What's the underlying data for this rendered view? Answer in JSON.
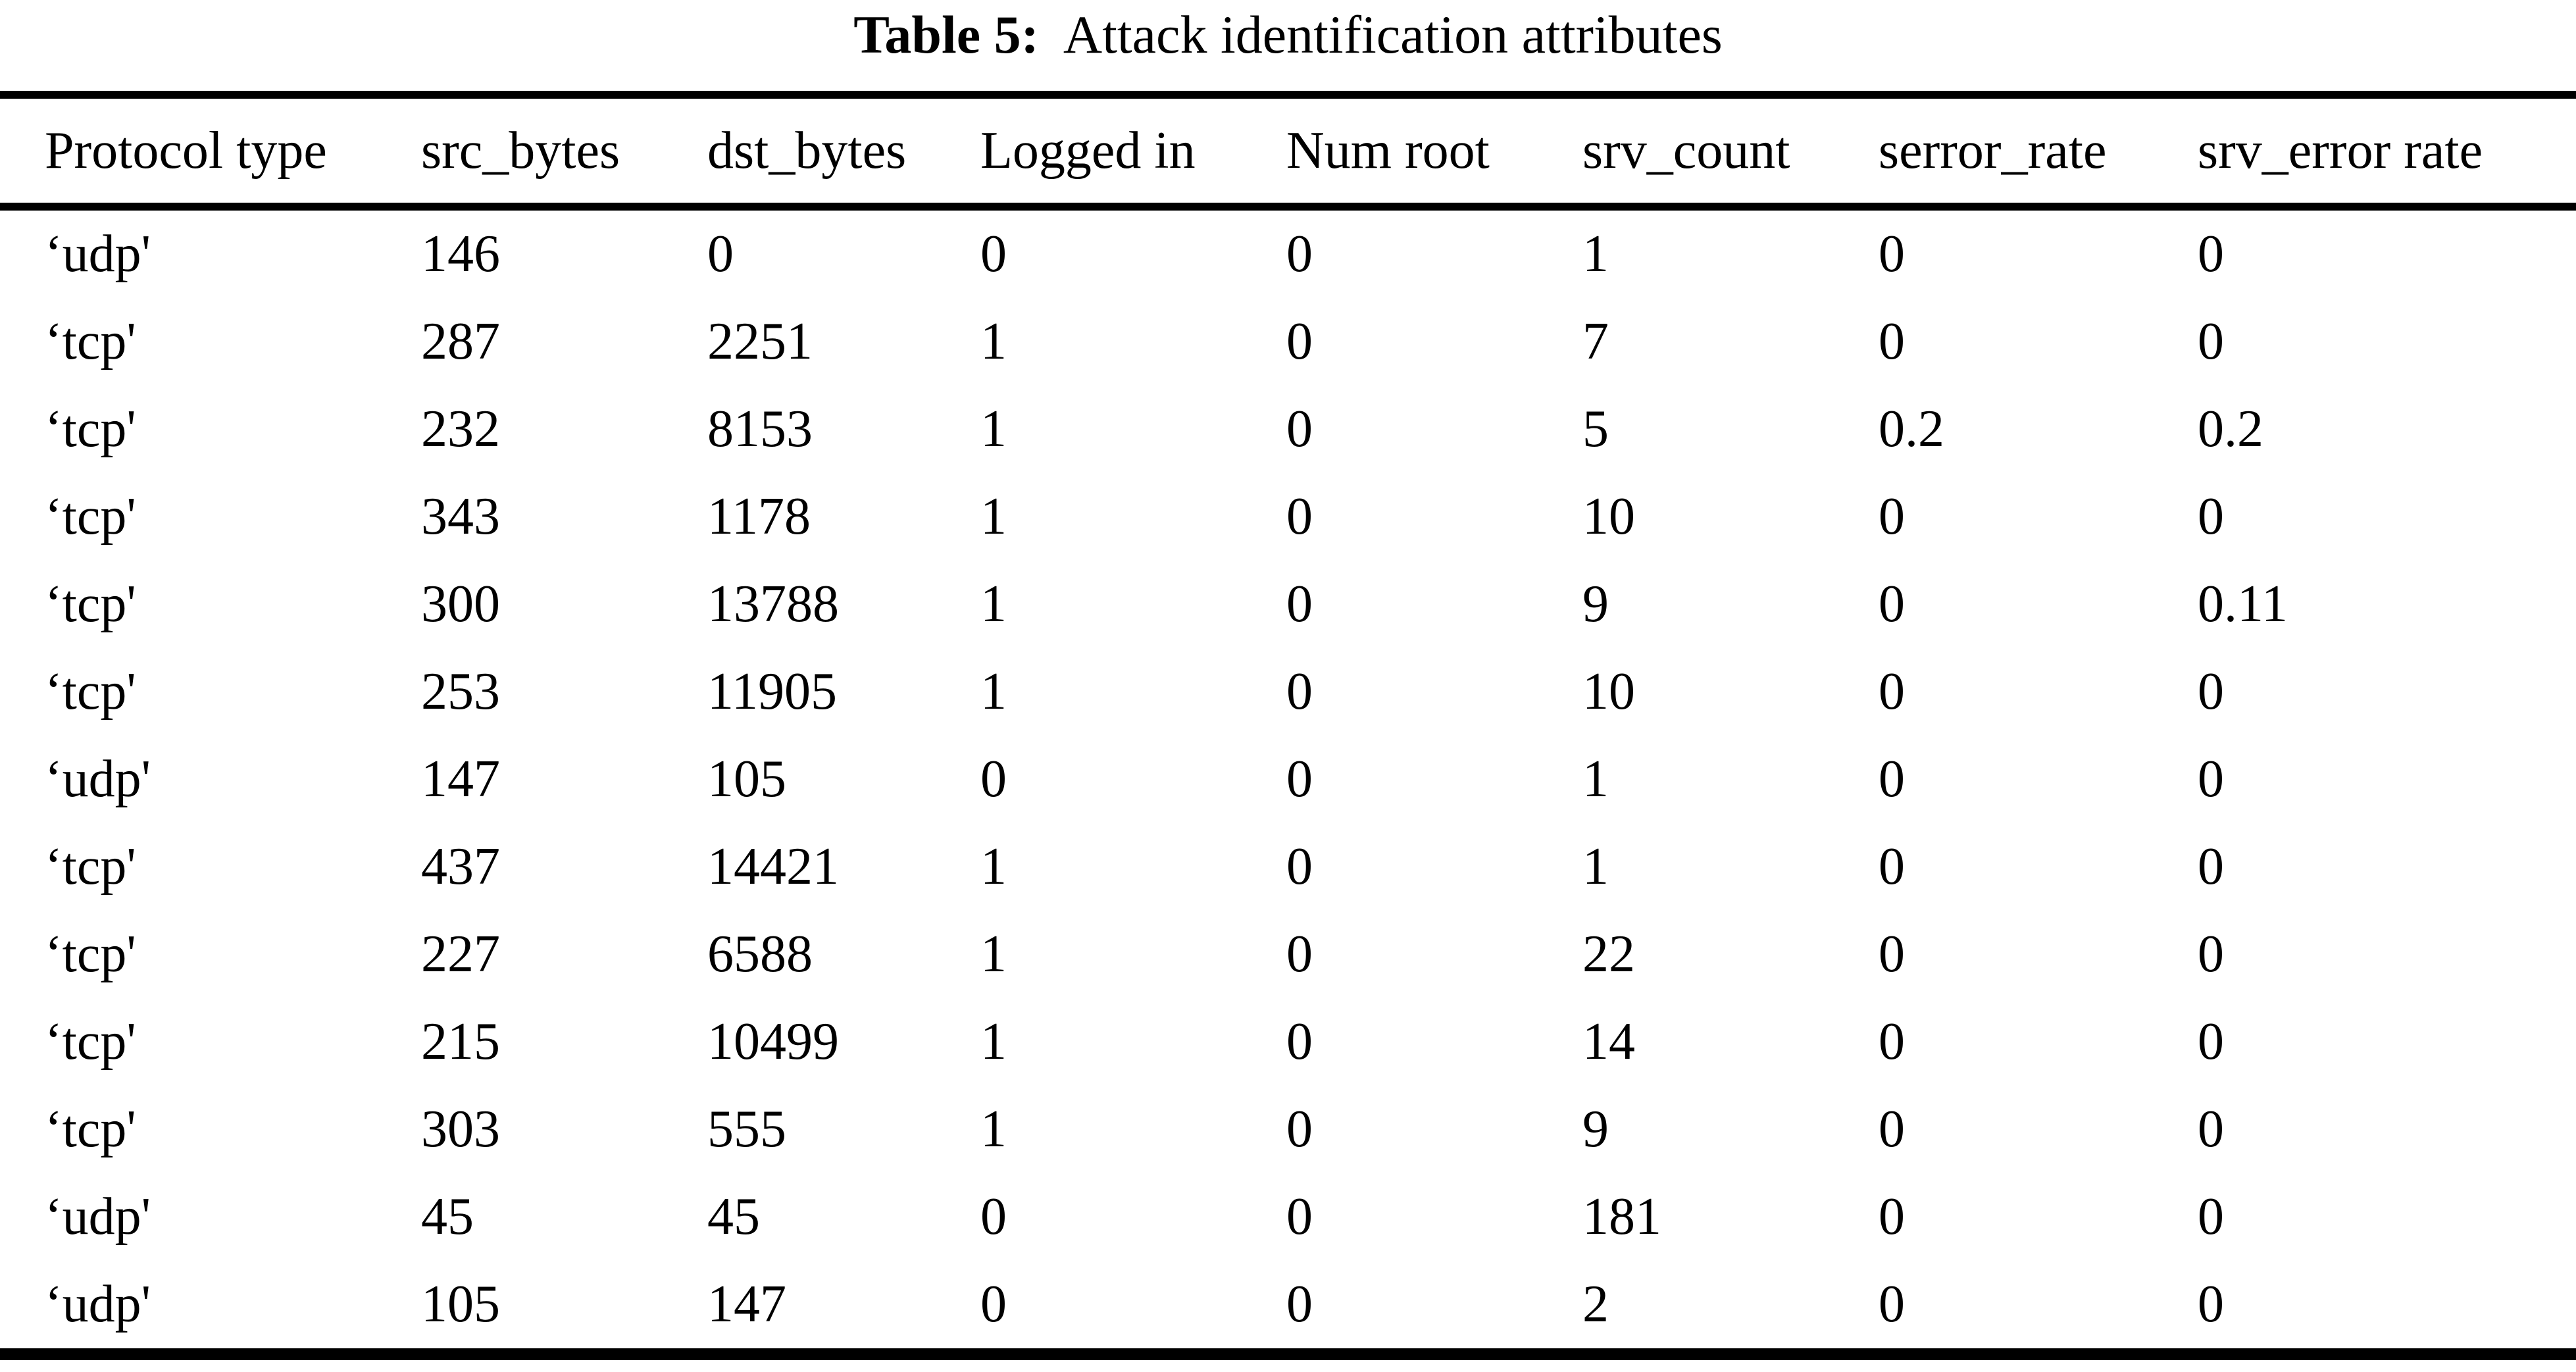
{
  "caption": {
    "label": "Table 5:",
    "text": "Attack identification attributes"
  },
  "table": {
    "columns": [
      "Protocol type",
      "src_bytes",
      "dst_bytes",
      "Logged in",
      "Num root",
      "srv_count",
      "serror_rate",
      "srv_error rate"
    ],
    "rows": [
      [
        "‘udp'",
        "146",
        "0",
        "0",
        "0",
        "1",
        "0",
        "0"
      ],
      [
        "‘tcp'",
        "287",
        "2251",
        "1",
        "0",
        "7",
        "0",
        "0"
      ],
      [
        "‘tcp'",
        "232",
        "8153",
        "1",
        "0",
        "5",
        "0.2",
        "0.2"
      ],
      [
        "‘tcp'",
        "343",
        "1178",
        "1",
        "0",
        "10",
        "0",
        "0"
      ],
      [
        "‘tcp'",
        "300",
        "13788",
        "1",
        "0",
        "9",
        "0",
        "0.11"
      ],
      [
        "‘tcp'",
        "253",
        "11905",
        "1",
        "0",
        "10",
        "0",
        "0"
      ],
      [
        "‘udp'",
        "147",
        "105",
        "0",
        "0",
        "1",
        "0",
        "0"
      ],
      [
        "‘tcp'",
        "437",
        "14421",
        "1",
        "0",
        "1",
        "0",
        "0"
      ],
      [
        "‘tcp'",
        "227",
        "6588",
        "1",
        "0",
        "22",
        "0",
        "0"
      ],
      [
        "‘tcp'",
        "215",
        "10499",
        "1",
        "0",
        "14",
        "0",
        "0"
      ],
      [
        "‘tcp'",
        "303",
        "555",
        "1",
        "0",
        "9",
        "0",
        "0"
      ],
      [
        "‘udp'",
        "45",
        "45",
        "0",
        "0",
        "181",
        "0",
        "0"
      ],
      [
        "‘udp'",
        "105",
        "147",
        "0",
        "0",
        "2",
        "0",
        "0"
      ]
    ]
  },
  "colors": {
    "text": "#000000",
    "background": "#ffffff",
    "rule": "#000000"
  }
}
